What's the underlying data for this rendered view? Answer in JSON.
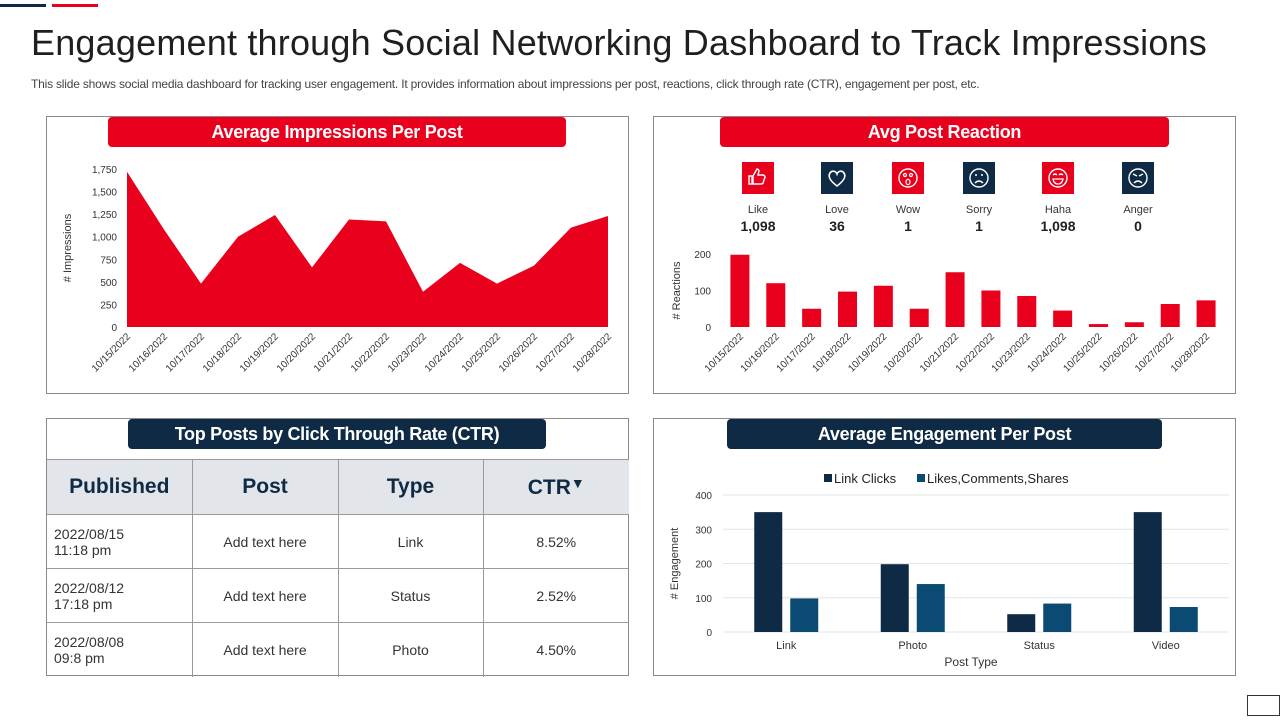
{
  "page": {
    "title": "Engagement through Social Networking Dashboard to Track Impressions",
    "subtitle": "This slide shows social media dashboard for tracking user engagement. It provides information about impressions per post, reactions, click through rate (CTR), engagement per post, etc."
  },
  "colors": {
    "red": "#e8001c",
    "navy": "#0f2a44",
    "blue": "#0a4a73"
  },
  "impressions": {
    "title": "Average Impressions Per Post",
    "chart_data": {
      "type": "area",
      "title": "Average Impressions Per Post",
      "ylabel": "# Impressions",
      "ylim": [
        0,
        1750
      ],
      "yticks": [
        0,
        250,
        500,
        750,
        "1,000",
        "1,250",
        "1,500",
        "1,750"
      ],
      "grid": false,
      "categories": [
        "10/15/2022",
        "10/16/2022",
        "10/17/2022",
        "10/18/2022",
        "10/19/2022",
        "10/20/2022",
        "10/21/2022",
        "10/22/2022",
        "10/23/2022",
        "10/24/2022",
        "10/25/2022",
        "10/26/2022",
        "10/27/2022",
        "10/28/2022"
      ],
      "values": [
        1720,
        1080,
        480,
        1000,
        1240,
        660,
        1190,
        1170,
        390,
        710,
        480,
        680,
        1100,
        1230
      ]
    }
  },
  "reactions": {
    "title": "Avg Post Reaction",
    "items": [
      {
        "label": "Like",
        "value": "1,098",
        "icon": "thumbs-up-icon",
        "color": "#e8001c"
      },
      {
        "label": "Love",
        "value": "36",
        "icon": "heart-icon",
        "color": "#0f2a44"
      },
      {
        "label": "Wow",
        "value": "1",
        "icon": "wow-face-icon",
        "color": "#e8001c"
      },
      {
        "label": "Sorry",
        "value": "1",
        "icon": "sad-face-icon",
        "color": "#0f2a44"
      },
      {
        "label": "Haha",
        "value": "1,098",
        "icon": "laughing-face-icon",
        "color": "#e8001c"
      },
      {
        "label": "Anger",
        "value": "0",
        "icon": "angry-face-icon",
        "color": "#0f2a44"
      }
    ],
    "chart_data": {
      "type": "bar",
      "ylabel": "# Reactions",
      "ylim": [
        0,
        200
      ],
      "yticks": [
        0,
        100,
        200
      ],
      "grid": false,
      "categories": [
        "10/15/2022",
        "10/16/2022",
        "10/17/2022",
        "10/18/2022",
        "10/19/2022",
        "10/20/2022",
        "10/21/2022",
        "10/22/2022",
        "10/23/2022",
        "10/24/2022",
        "10/25/2022",
        "10/26/2022",
        "10/27/2022",
        "10/28/2022"
      ],
      "values": [
        198,
        120,
        50,
        97,
        113,
        50,
        150,
        100,
        85,
        45,
        8,
        13,
        63,
        73
      ]
    }
  },
  "ctr": {
    "title": "Top Posts by Click Through Rate (CTR)",
    "headers": [
      "Published",
      "Post",
      "Type",
      "CTR"
    ],
    "sort_indicator": "▼",
    "rows": [
      {
        "date": "2022/08/15",
        "time": "11:18 pm",
        "post": "Add text here",
        "type": "Link",
        "ctr": "8.52%"
      },
      {
        "date": "2022/08/12",
        "time": "17:18 pm",
        "post": "Add text here",
        "type": "Status",
        "ctr": "2.52%"
      },
      {
        "date": "2022/08/08",
        "time": "09:8 pm",
        "post": "Add text here",
        "type": "Photo",
        "ctr": "4.50%"
      }
    ]
  },
  "engagement": {
    "title": "Average Engagement Per Post",
    "chart_data": {
      "type": "bar",
      "xlabel": "Post Type",
      "ylabel": "# Engagement",
      "ylim": [
        0,
        400
      ],
      "yticks": [
        0,
        100,
        200,
        300,
        400
      ],
      "grid": true,
      "legend": "top",
      "categories": [
        "Link",
        "Photo",
        "Status",
        "Video"
      ],
      "series": [
        {
          "name": "Link Clicks",
          "color": "#0f2a44",
          "values": [
            350,
            198,
            52,
            350
          ]
        },
        {
          "name": "Likes,Comments,Shares",
          "color": "#0a4a73",
          "values": [
            98,
            140,
            83,
            73
          ]
        }
      ]
    }
  }
}
